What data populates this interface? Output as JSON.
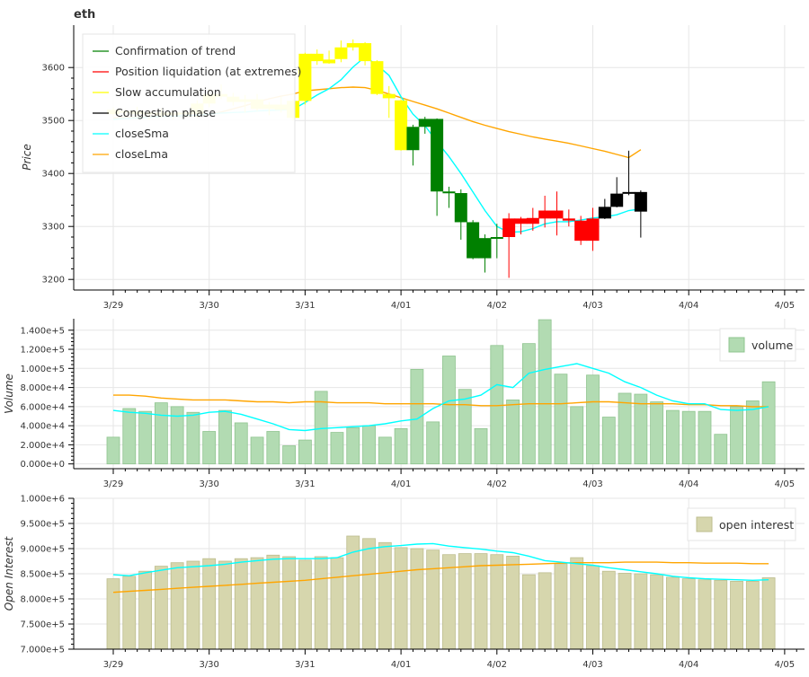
{
  "title": "eth",
  "x_ticks": [
    "3/29",
    "3/30",
    "3/31",
    "4/01",
    "4/02",
    "4/03",
    "4/04",
    "4/05"
  ],
  "legend_price": [
    {
      "label": "Confirmation of trend",
      "color": "#008000"
    },
    {
      "label": "Position liquidation (at extremes)",
      "color": "#ff0000"
    },
    {
      "label": "Slow accumulation",
      "color": "#ffff00"
    },
    {
      "label": "Congestion phase",
      "color": "#000000"
    },
    {
      "label": "closeSma",
      "color": "#00ffff"
    },
    {
      "label": "closeLma",
      "color": "#ffa500"
    }
  ],
  "legend_volume": {
    "label": "volume",
    "color": "#b2dbb2"
  },
  "legend_oi": {
    "label": "open interest",
    "color": "#d6d6ad"
  },
  "chart_data": [
    {
      "type": "candlestick",
      "name": "price",
      "ylabel": "Price",
      "ylim": [
        3180,
        3680
      ],
      "y_ticks": [
        3200,
        3300,
        3400,
        3500,
        3600
      ],
      "x_start": "3/29 00:00",
      "x_step_hours": 3,
      "candles": [
        {
          "i": 0,
          "o": 3520,
          "h": 3525,
          "l": 3508,
          "c": 3512,
          "phase": "slow"
        },
        {
          "i": 1,
          "o": 3515,
          "h": 3522,
          "l": 3505,
          "c": 3518,
          "phase": "slow"
        },
        {
          "i": 2,
          "o": 3518,
          "h": 3526,
          "l": 3510,
          "c": 3512,
          "phase": "slow"
        },
        {
          "i": 3,
          "o": 3512,
          "h": 3520,
          "l": 3502,
          "c": 3515,
          "phase": "slow"
        },
        {
          "i": 4,
          "o": 3515,
          "h": 3523,
          "l": 3505,
          "c": 3510,
          "phase": "slow"
        },
        {
          "i": 5,
          "o": 3510,
          "h": 3518,
          "l": 3502,
          "c": 3515,
          "phase": "slow"
        },
        {
          "i": 6,
          "o": 3515,
          "h": 3522,
          "l": 3508,
          "c": 3512,
          "phase": "slow"
        },
        {
          "i": 7,
          "o": 3512,
          "h": 3538,
          "l": 3505,
          "c": 3532,
          "phase": "slow"
        },
        {
          "i": 8,
          "o": 3532,
          "h": 3560,
          "l": 3525,
          "c": 3550,
          "phase": "slow"
        },
        {
          "i": 9,
          "o": 3550,
          "h": 3568,
          "l": 3540,
          "c": 3545,
          "phase": "slow"
        },
        {
          "i": 10,
          "o": 3545,
          "h": 3552,
          "l": 3528,
          "c": 3535,
          "phase": "slow"
        },
        {
          "i": 11,
          "o": 3535,
          "h": 3548,
          "l": 3515,
          "c": 3540,
          "phase": "slow"
        },
        {
          "i": 12,
          "o": 3540,
          "h": 3550,
          "l": 3518,
          "c": 3522,
          "phase": "slow"
        },
        {
          "i": 13,
          "o": 3522,
          "h": 3535,
          "l": 3510,
          "c": 3530,
          "phase": "slow"
        },
        {
          "i": 14,
          "o": 3530,
          "h": 3545,
          "l": 3515,
          "c": 3520,
          "phase": "slow"
        },
        {
          "i": 15,
          "o": 3505,
          "h": 3540,
          "l": 3500,
          "c": 3537,
          "phase": "slow"
        },
        {
          "i": 16,
          "o": 3537,
          "h": 3628,
          "l": 3530,
          "c": 3626,
          "phase": "slow"
        },
        {
          "i": 17,
          "o": 3626,
          "h": 3634,
          "l": 3605,
          "c": 3612,
          "phase": "slow"
        },
        {
          "i": 18,
          "o": 3615,
          "h": 3632,
          "l": 3607,
          "c": 3608,
          "phase": "slow"
        },
        {
          "i": 19,
          "o": 3616,
          "h": 3651,
          "l": 3610,
          "c": 3638,
          "phase": "slow"
        },
        {
          "i": 20,
          "o": 3638,
          "h": 3653,
          "l": 3632,
          "c": 3646,
          "phase": "slow"
        },
        {
          "i": 21,
          "o": 3646,
          "h": 3648,
          "l": 3604,
          "c": 3612,
          "phase": "slow"
        },
        {
          "i": 22,
          "o": 3612,
          "h": 3614,
          "l": 3548,
          "c": 3550,
          "phase": "slow"
        },
        {
          "i": 23,
          "o": 3550,
          "h": 3565,
          "l": 3505,
          "c": 3542,
          "phase": "slow"
        },
        {
          "i": 24,
          "o": 3538,
          "h": 3540,
          "l": 3443,
          "c": 3444,
          "phase": "slow"
        },
        {
          "i": 25,
          "o": 3444,
          "h": 3492,
          "l": 3415,
          "c": 3488,
          "phase": "trend"
        },
        {
          "i": 26,
          "o": 3488,
          "h": 3507,
          "l": 3475,
          "c": 3503,
          "phase": "trend"
        },
        {
          "i": 27,
          "o": 3503,
          "h": 3504,
          "l": 3320,
          "c": 3366,
          "phase": "trend"
        },
        {
          "i": 28,
          "o": 3366,
          "h": 3375,
          "l": 3335,
          "c": 3363,
          "phase": "trend"
        },
        {
          "i": 29,
          "o": 3363,
          "h": 3370,
          "l": 3275,
          "c": 3308,
          "phase": "trend"
        },
        {
          "i": 30,
          "o": 3308,
          "h": 3312,
          "l": 3238,
          "c": 3240,
          "phase": "trend"
        },
        {
          "i": 31,
          "o": 3240,
          "h": 3285,
          "l": 3213,
          "c": 3278,
          "phase": "trend"
        },
        {
          "i": 32,
          "o": 3278,
          "h": 3305,
          "l": 3240,
          "c": 3280,
          "phase": "trend"
        },
        {
          "i": 33,
          "o": 3280,
          "h": 3325,
          "l": 3203,
          "c": 3315,
          "phase": "liquidation"
        },
        {
          "i": 34,
          "o": 3305,
          "h": 3318,
          "l": 3285,
          "c": 3315,
          "phase": "liquidation"
        },
        {
          "i": 35,
          "o": 3305,
          "h": 3335,
          "l": 3292,
          "c": 3316,
          "phase": "liquidation"
        },
        {
          "i": 36,
          "o": 3315,
          "h": 3358,
          "l": 3298,
          "c": 3330,
          "phase": "liquidation"
        },
        {
          "i": 37,
          "o": 3330,
          "h": 3366,
          "l": 3283,
          "c": 3315,
          "phase": "liquidation"
        },
        {
          "i": 38,
          "o": 3315,
          "h": 3332,
          "l": 3300,
          "c": 3311,
          "phase": "liquidation"
        },
        {
          "i": 39,
          "o": 3311,
          "h": 3320,
          "l": 3265,
          "c": 3273,
          "phase": "liquidation"
        },
        {
          "i": 40,
          "o": 3273,
          "h": 3335,
          "l": 3254,
          "c": 3315,
          "phase": "liquidation"
        },
        {
          "i": 41,
          "o": 3315,
          "h": 3352,
          "l": 3314,
          "c": 3337,
          "phase": "congestion"
        },
        {
          "i": 42,
          "o": 3337,
          "h": 3393,
          "l": 3336,
          "c": 3362,
          "phase": "congestion"
        },
        {
          "i": 43,
          "o": 3362,
          "h": 3443,
          "l": 3359,
          "c": 3365,
          "phase": "congestion"
        },
        {
          "i": 44,
          "o": 3365,
          "h": 3368,
          "l": 3279,
          "c": 3328,
          "phase": "congestion"
        }
      ],
      "closeSma": [
        3502,
        3504,
        3505,
        3506,
        3507,
        3508,
        3509,
        3510,
        3512,
        3514,
        3515,
        3516,
        3518,
        3519,
        3520,
        3521,
        3534,
        3548,
        3560,
        3577,
        3601,
        3620,
        3605,
        3585,
        3545,
        3512,
        3490,
        3460,
        3432,
        3400,
        3365,
        3330,
        3300,
        3289,
        3290,
        3296,
        3305,
        3309,
        3309,
        3312,
        3316,
        3318,
        3322,
        3330,
        3333
      ],
      "closeLma": [
        3505,
        3506,
        3506,
        3507,
        3507,
        3508,
        3508,
        3509,
        3512,
        3516,
        3522,
        3528,
        3535,
        3541,
        3546,
        3550,
        3556,
        3558,
        3560,
        3562,
        3563,
        3562,
        3557,
        3550,
        3543,
        3536,
        3529,
        3522,
        3514,
        3506,
        3498,
        3491,
        3485,
        3479,
        3474,
        3469,
        3465,
        3461,
        3457,
        3452,
        3447,
        3442,
        3436,
        3430,
        3445
      ]
    },
    {
      "type": "bar",
      "name": "volume",
      "ylabel": "Volume",
      "ylim": [
        -5000,
        152000
      ],
      "y_ticks": [
        0,
        20000,
        40000,
        60000,
        80000,
        100000,
        120000,
        140000
      ],
      "y_tick_labels": [
        "0.000e+0",
        "2.000e+4",
        "4.000e+4",
        "6.000e+4",
        "8.000e+4",
        "1.000e+5",
        "1.200e+5",
        "1.400e+5"
      ],
      "values": [
        28000,
        58000,
        55000,
        64000,
        60000,
        54000,
        34000,
        56000,
        43000,
        28000,
        34000,
        19000,
        25000,
        76000,
        33000,
        38000,
        40000,
        28000,
        37000,
        99000,
        44000,
        113000,
        78000,
        37000,
        124000,
        67000,
        126000,
        151000,
        94000,
        60000,
        93000,
        49000,
        74000,
        73000,
        65000,
        56000,
        55000,
        55000,
        31000,
        60000,
        66000,
        86000
      ],
      "sma": [
        56000,
        54000,
        53000,
        51000,
        50000,
        51000,
        54000,
        55000,
        52000,
        47000,
        42000,
        36000,
        35000,
        37000,
        38000,
        39000,
        40000,
        42000,
        45000,
        47000,
        58000,
        66000,
        68000,
        72000,
        83000,
        80000,
        95000,
        99000,
        102000,
        105000,
        100000,
        95000,
        86000,
        80000,
        72000,
        66000,
        63000,
        63000,
        57000,
        56000,
        57000,
        60000
      ],
      "lma": [
        72000,
        72000,
        71000,
        69000,
        68000,
        67000,
        67000,
        67000,
        66000,
        65000,
        65000,
        64000,
        65000,
        65000,
        64000,
        64000,
        64000,
        63000,
        63000,
        63000,
        63000,
        62000,
        62000,
        61000,
        61000,
        62000,
        63000,
        63000,
        63000,
        64000,
        65000,
        65000,
        64000,
        63000,
        63000,
        63000,
        62000,
        62000,
        61000,
        61000,
        60000,
        60000
      ]
    },
    {
      "type": "bar",
      "name": "open interest",
      "ylabel": "Open Interest",
      "ylim": [
        700000,
        1000000
      ],
      "y_ticks": [
        700000,
        750000,
        800000,
        850000,
        900000,
        950000,
        1000000
      ],
      "y_tick_labels": [
        "7.000e+5",
        "7.500e+5",
        "8.000e+5",
        "8.500e+5",
        "9.000e+5",
        "9.500e+5",
        "1.000e+6"
      ],
      "values": [
        840000,
        845000,
        855000,
        865000,
        872000,
        875000,
        880000,
        875000,
        880000,
        882000,
        887000,
        884000,
        877000,
        884000,
        882000,
        925000,
        920000,
        912000,
        902000,
        900000,
        897000,
        888000,
        890000,
        890000,
        888000,
        885000,
        848000,
        852000,
        870000,
        882000,
        866000,
        855000,
        851000,
        850000,
        848000,
        843000,
        840000,
        838000,
        837000,
        835000,
        835000,
        842000
      ],
      "sma": [
        848000,
        846000,
        852000,
        857000,
        862000,
        864000,
        866000,
        869000,
        873000,
        876000,
        879000,
        880000,
        880000,
        880000,
        882000,
        893000,
        900000,
        904000,
        906000,
        909000,
        910000,
        905000,
        902000,
        899000,
        895000,
        892000,
        885000,
        876000,
        873000,
        870000,
        867000,
        862000,
        858000,
        854000,
        850000,
        845000,
        842000,
        840000,
        839000,
        838000,
        837000,
        838000
      ],
      "lma": [
        813000,
        815000,
        817000,
        819000,
        821000,
        823000,
        825000,
        827000,
        829000,
        831000,
        833000,
        835000,
        837000,
        840000,
        843000,
        846000,
        849000,
        852000,
        855000,
        858000,
        860000,
        862000,
        864000,
        866000,
        867000,
        868000,
        869000,
        870000,
        871000,
        872000,
        872000,
        872000,
        873000,
        873000,
        873000,
        872000,
        872000,
        871000,
        871000,
        871000,
        870000,
        870000
      ]
    }
  ]
}
